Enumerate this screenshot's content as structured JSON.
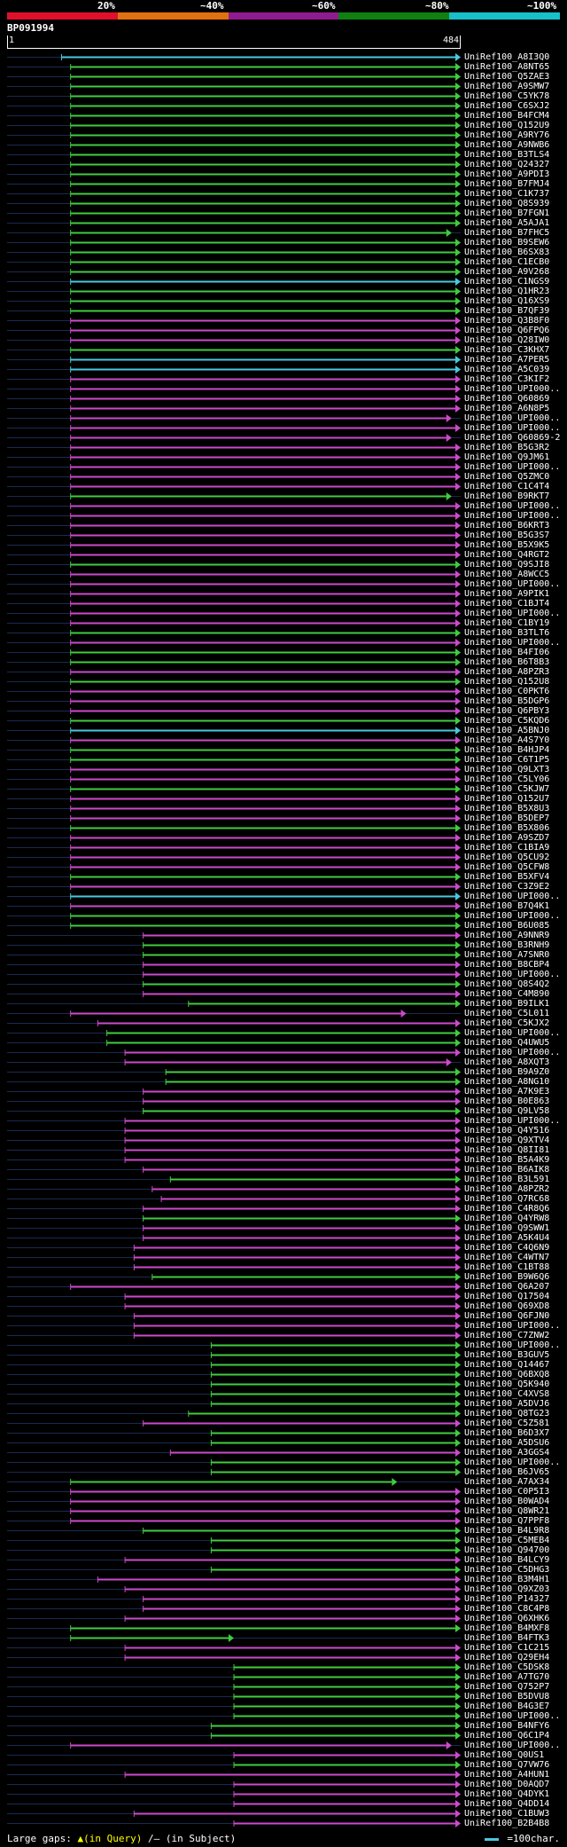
{
  "legend": {
    "labels": [
      "20%",
      "~40%",
      "~60%",
      "~80%",
      "~100%"
    ],
    "colors": [
      "#e0102a",
      "#e07010",
      "#901a90",
      "#108010",
      "#18c0c8"
    ]
  },
  "query": {
    "id": "BP091994",
    "start": "1",
    "end": "484"
  },
  "footer": {
    "gaps_prefix": "Large gaps:",
    "gaps_query": "▲(in Query)",
    "gaps_subject": "/– (in Subject)",
    "scale": "=100char."
  },
  "colors": {
    "green": "#40cc40",
    "magenta": "#cc4acc",
    "cyan": "#4ac8e0",
    "query_marker": "#ffff40"
  },
  "hits": [
    {
      "acc": "UniRef100_A8I3Q0",
      "c": "cyan",
      "s": 0.12,
      "e": 1.0
    },
    {
      "acc": "UniRef100_A8NT65",
      "c": "green",
      "s": 0.14,
      "e": 1.0
    },
    {
      "acc": "UniRef100_Q5ZAE3",
      "c": "green",
      "s": 0.14,
      "e": 1.0
    },
    {
      "acc": "UniRef100_A9SMW7",
      "c": "green",
      "s": 0.14,
      "e": 1.0
    },
    {
      "acc": "UniRef100_C5YK78",
      "c": "green",
      "s": 0.14,
      "e": 1.0
    },
    {
      "acc": "UniRef100_C6SXJ2",
      "c": "green",
      "s": 0.14,
      "e": 1.0
    },
    {
      "acc": "UniRef100_B4FCM4",
      "c": "green",
      "s": 0.14,
      "e": 1.0
    },
    {
      "acc": "UniRef100_Q152U9",
      "c": "green",
      "s": 0.14,
      "e": 1.0
    },
    {
      "acc": "UniRef100_A9RY76",
      "c": "green",
      "s": 0.14,
      "e": 1.0
    },
    {
      "acc": "UniRef100_A9NWB6",
      "c": "green",
      "s": 0.14,
      "e": 1.0
    },
    {
      "acc": "UniRef100_B3TLS4",
      "c": "green",
      "s": 0.14,
      "e": 1.0
    },
    {
      "acc": "UniRef100_Q24327",
      "c": "green",
      "s": 0.14,
      "e": 1.0
    },
    {
      "acc": "UniRef100_A9PDI3",
      "c": "green",
      "s": 0.14,
      "e": 1.0
    },
    {
      "acc": "UniRef100_B7FMJ4",
      "c": "green",
      "s": 0.14,
      "e": 1.0
    },
    {
      "acc": "UniRef100_C1K737",
      "c": "green",
      "s": 0.14,
      "e": 1.0
    },
    {
      "acc": "UniRef100_Q8S939",
      "c": "green",
      "s": 0.14,
      "e": 1.0
    },
    {
      "acc": "UniRef100_B7FGN1",
      "c": "green",
      "s": 0.14,
      "e": 1.0
    },
    {
      "acc": "UniRef100_A5AJA1",
      "c": "green",
      "s": 0.14,
      "e": 1.0
    },
    {
      "acc": "UniRef100_B7FHC5",
      "c": "green",
      "s": 0.14,
      "e": 0.98
    },
    {
      "acc": "UniRef100_B9SEW6",
      "c": "green",
      "s": 0.14,
      "e": 1.0
    },
    {
      "acc": "UniRef100_B6SX83",
      "c": "green",
      "s": 0.14,
      "e": 1.0
    },
    {
      "acc": "UniRef100_C1ECB0",
      "c": "green",
      "s": 0.14,
      "e": 1.0
    },
    {
      "acc": "UniRef100_A9V268",
      "c": "green",
      "s": 0.14,
      "e": 1.0
    },
    {
      "acc": "UniRef100_C1NGS9",
      "c": "cyan",
      "s": 0.14,
      "e": 1.0
    },
    {
      "acc": "UniRef100_Q1HR23",
      "c": "green",
      "s": 0.14,
      "e": 1.0
    },
    {
      "acc": "UniRef100_Q16XS9",
      "c": "green",
      "s": 0.14,
      "e": 1.0
    },
    {
      "acc": "UniRef100_B7QF39",
      "c": "green",
      "s": 0.14,
      "e": 1.0
    },
    {
      "acc": "UniRef100_Q3B8F0",
      "c": "magenta",
      "s": 0.14,
      "e": 1.0
    },
    {
      "acc": "UniRef100_Q6FPQ6",
      "c": "magenta",
      "s": 0.14,
      "e": 1.0
    },
    {
      "acc": "UniRef100_Q28IW0",
      "c": "magenta",
      "s": 0.14,
      "e": 1.0
    },
    {
      "acc": "UniRef100_C3KHX7",
      "c": "green",
      "s": 0.14,
      "e": 1.0
    },
    {
      "acc": "UniRef100_A7PER5",
      "c": "cyan",
      "s": 0.14,
      "e": 1.0
    },
    {
      "acc": "UniRef100_A5C039",
      "c": "cyan",
      "s": 0.14,
      "e": 1.0
    },
    {
      "acc": "UniRef100_C3KIF2",
      "c": "magenta",
      "s": 0.14,
      "e": 1.0
    },
    {
      "acc": "UniRef100_UPI000..",
      "c": "magenta",
      "s": 0.14,
      "e": 1.0
    },
    {
      "acc": "UniRef100_Q60869",
      "c": "magenta",
      "s": 0.14,
      "e": 1.0
    },
    {
      "acc": "UniRef100_A6N8P5",
      "c": "magenta",
      "s": 0.14,
      "e": 1.0
    },
    {
      "acc": "UniRef100_UPI000..",
      "c": "magenta",
      "s": 0.14,
      "e": 0.98
    },
    {
      "acc": "UniRef100_UPI000..",
      "c": "magenta",
      "s": 0.14,
      "e": 1.0
    },
    {
      "acc": "UniRef100_Q60869-2",
      "c": "magenta",
      "s": 0.14,
      "e": 0.98
    },
    {
      "acc": "UniRef100_B5G3R2",
      "c": "magenta",
      "s": 0.14,
      "e": 1.0
    },
    {
      "acc": "UniRef100_Q9JM61",
      "c": "magenta",
      "s": 0.14,
      "e": 1.0
    },
    {
      "acc": "UniRef100_UPI000..",
      "c": "magenta",
      "s": 0.14,
      "e": 1.0
    },
    {
      "acc": "UniRef100_Q5ZMC0",
      "c": "magenta",
      "s": 0.14,
      "e": 1.0
    },
    {
      "acc": "UniRef100_C1C4T4",
      "c": "magenta",
      "s": 0.14,
      "e": 1.0
    },
    {
      "acc": "UniRef100_B9RKT7",
      "c": "green",
      "s": 0.14,
      "e": 0.98
    },
    {
      "acc": "UniRef100_UPI000..",
      "c": "magenta",
      "s": 0.14,
      "e": 1.0
    },
    {
      "acc": "UniRef100_UPI000..",
      "c": "magenta",
      "s": 0.14,
      "e": 1.0
    },
    {
      "acc": "UniRef100_B6KRT3",
      "c": "magenta",
      "s": 0.14,
      "e": 1.0
    },
    {
      "acc": "UniRef100_B5G3S7",
      "c": "magenta",
      "s": 0.14,
      "e": 1.0
    },
    {
      "acc": "UniRef100_B5X9K5",
      "c": "magenta",
      "s": 0.14,
      "e": 1.0
    },
    {
      "acc": "UniRef100_Q4RGT2",
      "c": "magenta",
      "s": 0.14,
      "e": 1.0
    },
    {
      "acc": "UniRef100_Q9SJI8",
      "c": "green",
      "s": 0.14,
      "e": 1.0
    },
    {
      "acc": "UniRef100_A8WCC5",
      "c": "magenta",
      "s": 0.14,
      "e": 1.0
    },
    {
      "acc": "UniRef100_UPI000..",
      "c": "magenta",
      "s": 0.14,
      "e": 1.0
    },
    {
      "acc": "UniRef100_A9PIK1",
      "c": "magenta",
      "s": 0.14,
      "e": 1.0
    },
    {
      "acc": "UniRef100_C1BJT4",
      "c": "magenta",
      "s": 0.14,
      "e": 1.0
    },
    {
      "acc": "UniRef100_UPI000..",
      "c": "magenta",
      "s": 0.14,
      "e": 1.0
    },
    {
      "acc": "UniRef100_C1BY19",
      "c": "magenta",
      "s": 0.14,
      "e": 1.0
    },
    {
      "acc": "UniRef100_B3TLT6",
      "c": "green",
      "s": 0.14,
      "e": 1.0
    },
    {
      "acc": "UniRef100_UPI000..",
      "c": "magenta",
      "s": 0.14,
      "e": 1.0
    },
    {
      "acc": "UniRef100_B4FI06",
      "c": "green",
      "s": 0.14,
      "e": 1.0
    },
    {
      "acc": "UniRef100_B6T8B3",
      "c": "green",
      "s": 0.14,
      "e": 1.0
    },
    {
      "acc": "UniRef100_A8PZR3",
      "c": "magenta",
      "s": 0.14,
      "e": 1.0
    },
    {
      "acc": "UniRef100_Q152U8",
      "c": "green",
      "s": 0.14,
      "e": 1.0
    },
    {
      "acc": "UniRef100_C0PKT6",
      "c": "magenta",
      "s": 0.14,
      "e": 1.0
    },
    {
      "acc": "UniRef100_B5DGP6",
      "c": "magenta",
      "s": 0.14,
      "e": 1.0
    },
    {
      "acc": "UniRef100_Q6PBY3",
      "c": "magenta",
      "s": 0.14,
      "e": 1.0
    },
    {
      "acc": "UniRef100_C5KQD6",
      "c": "green",
      "s": 0.14,
      "e": 1.0
    },
    {
      "acc": "UniRef100_A5BNJ0",
      "c": "cyan",
      "s": 0.14,
      "e": 1.0
    },
    {
      "acc": "UniRef100_A4S7Y0",
      "c": "magenta",
      "s": 0.14,
      "e": 1.0
    },
    {
      "acc": "UniRef100_B4HJP4",
      "c": "green",
      "s": 0.14,
      "e": 1.0
    },
    {
      "acc": "UniRef100_C6T1P5",
      "c": "green",
      "s": 0.14,
      "e": 1.0
    },
    {
      "acc": "UniRef100_Q9LXT3",
      "c": "magenta",
      "s": 0.14,
      "e": 1.0
    },
    {
      "acc": "UniRef100_C5LY06",
      "c": "magenta",
      "s": 0.14,
      "e": 1.0
    },
    {
      "acc": "UniRef100_C5KJW7",
      "c": "green",
      "s": 0.14,
      "e": 1.0
    },
    {
      "acc": "UniRef100_Q152U7",
      "c": "magenta",
      "s": 0.14,
      "e": 1.0
    },
    {
      "acc": "UniRef100_B5X8U3",
      "c": "magenta",
      "s": 0.14,
      "e": 1.0
    },
    {
      "acc": "UniRef100_B5DEP7",
      "c": "magenta",
      "s": 0.14,
      "e": 1.0
    },
    {
      "acc": "UniRef100_B5X806",
      "c": "green",
      "s": 0.14,
      "e": 1.0
    },
    {
      "acc": "UniRef100_A9SZD7",
      "c": "magenta",
      "s": 0.14,
      "e": 1.0
    },
    {
      "acc": "UniRef100_C1BIA9",
      "c": "magenta",
      "s": 0.14,
      "e": 1.0
    },
    {
      "acc": "UniRef100_Q5CU92",
      "c": "magenta",
      "s": 0.14,
      "e": 1.0
    },
    {
      "acc": "UniRef100_Q5CFW8",
      "c": "magenta",
      "s": 0.14,
      "e": 1.0
    },
    {
      "acc": "UniRef100_B5XFV4",
      "c": "green",
      "s": 0.14,
      "e": 1.0
    },
    {
      "acc": "UniRef100_C3Z9E2",
      "c": "magenta",
      "s": 0.14,
      "e": 1.0
    },
    {
      "acc": "UniRef100_UPI000..",
      "c": "cyan",
      "s": 0.14,
      "e": 1.0
    },
    {
      "acc": "UniRef100_B7Q4K1",
      "c": "magenta",
      "s": 0.14,
      "e": 1.0
    },
    {
      "acc": "UniRef100_UPI000..",
      "c": "green",
      "s": 0.14,
      "e": 1.0
    },
    {
      "acc": "UniRef100_B6U085",
      "c": "green",
      "s": 0.14,
      "e": 1.0
    },
    {
      "acc": "UniRef100_A9NNR9",
      "c": "magenta",
      "s": 0.3,
      "e": 1.0
    },
    {
      "acc": "UniRef100_B3RNH9",
      "c": "green",
      "s": 0.3,
      "e": 1.0
    },
    {
      "acc": "UniRef100_A7SNR0",
      "c": "green",
      "s": 0.3,
      "e": 1.0
    },
    {
      "acc": "UniRef100_B8CBP4",
      "c": "magenta",
      "s": 0.3,
      "e": 1.0
    },
    {
      "acc": "UniRef100_UPI000..",
      "c": "magenta",
      "s": 0.3,
      "e": 1.0
    },
    {
      "acc": "UniRef100_Q8S4Q2",
      "c": "green",
      "s": 0.3,
      "e": 1.0
    },
    {
      "acc": "UniRef100_C4M890",
      "c": "magenta",
      "s": 0.3,
      "e": 1.0
    },
    {
      "acc": "UniRef100_B9ILK1",
      "c": "green",
      "s": 0.4,
      "e": 1.0
    },
    {
      "acc": "UniRef100_C5L011",
      "c": "magenta",
      "s": 0.14,
      "e": 0.88
    },
    {
      "acc": "UniRef100_C5KJX2",
      "c": "magenta",
      "s": 0.2,
      "e": 1.0
    },
    {
      "acc": "UniRef100_UPI000..",
      "c": "green",
      "s": 0.22,
      "e": 1.0
    },
    {
      "acc": "UniRef100_Q4UWU5",
      "c": "green",
      "s": 0.22,
      "e": 1.0
    },
    {
      "acc": "UniRef100_UPI000..",
      "c": "magenta",
      "s": 0.26,
      "e": 1.0
    },
    {
      "acc": "UniRef100_A8XQT3",
      "c": "magenta",
      "s": 0.26,
      "e": 0.98
    },
    {
      "acc": "UniRef100_B9A9Z0",
      "c": "green",
      "s": 0.35,
      "e": 1.0
    },
    {
      "acc": "UniRef100_A8NG10",
      "c": "green",
      "s": 0.35,
      "e": 1.0
    },
    {
      "acc": "UniRef100_A7K9E3",
      "c": "magenta",
      "s": 0.3,
      "e": 1.0
    },
    {
      "acc": "UniRef100_B0E863",
      "c": "magenta",
      "s": 0.3,
      "e": 1.0
    },
    {
      "acc": "UniRef100_Q9LV58",
      "c": "green",
      "s": 0.3,
      "e": 1.0
    },
    {
      "acc": "UniRef100_UPI000..",
      "c": "magenta",
      "s": 0.26,
      "e": 1.0
    },
    {
      "acc": "UniRef100_Q4Y516",
      "c": "magenta",
      "s": 0.26,
      "e": 1.0
    },
    {
      "acc": "UniRef100_Q9XTV4",
      "c": "magenta",
      "s": 0.26,
      "e": 1.0
    },
    {
      "acc": "UniRef100_Q8II81",
      "c": "magenta",
      "s": 0.26,
      "e": 1.0
    },
    {
      "acc": "UniRef100_B5A4K9",
      "c": "magenta",
      "s": 0.26,
      "e": 1.0
    },
    {
      "acc": "UniRef100_B6AIK8",
      "c": "magenta",
      "s": 0.3,
      "e": 1.0
    },
    {
      "acc": "UniRef100_B3L591",
      "c": "green",
      "s": 0.36,
      "e": 1.0
    },
    {
      "acc": "UniRef100_A8PZR2",
      "c": "magenta",
      "s": 0.32,
      "e": 1.0
    },
    {
      "acc": "UniRef100_Q7RC68",
      "c": "magenta",
      "s": 0.34,
      "e": 1.0
    },
    {
      "acc": "UniRef100_C4R8Q6",
      "c": "magenta",
      "s": 0.3,
      "e": 1.0
    },
    {
      "acc": "UniRef100_Q4YRW8",
      "c": "green",
      "s": 0.3,
      "e": 1.0
    },
    {
      "acc": "UniRef100_Q9SWW1",
      "c": "magenta",
      "s": 0.3,
      "e": 1.0
    },
    {
      "acc": "UniRef100_A5K4U4",
      "c": "magenta",
      "s": 0.3,
      "e": 1.0
    },
    {
      "acc": "UniRef100_C4Q6N9",
      "c": "magenta",
      "s": 0.28,
      "e": 1.0
    },
    {
      "acc": "UniRef100_C4WTN7",
      "c": "magenta",
      "s": 0.28,
      "e": 1.0
    },
    {
      "acc": "UniRef100_C1BT88",
      "c": "magenta",
      "s": 0.28,
      "e": 1.0
    },
    {
      "acc": "UniRef100_B9W6Q6",
      "c": "green",
      "s": 0.32,
      "e": 1.0
    },
    {
      "acc": "UniRef100_Q6A207",
      "c": "magenta",
      "s": 0.14,
      "e": 1.0
    },
    {
      "acc": "UniRef100_Q17504",
      "c": "magenta",
      "s": 0.26,
      "e": 1.0
    },
    {
      "acc": "UniRef100_Q69XD8",
      "c": "magenta",
      "s": 0.26,
      "e": 1.0
    },
    {
      "acc": "UniRef100_Q6FJN0",
      "c": "magenta",
      "s": 0.28,
      "e": 1.0
    },
    {
      "acc": "UniRef100_UPI000..",
      "c": "magenta",
      "s": 0.28,
      "e": 1.0
    },
    {
      "acc": "UniRef100_C7ZNW2",
      "c": "magenta",
      "s": 0.28,
      "e": 1.0
    },
    {
      "acc": "UniRef100_UPI000..",
      "c": "green",
      "s": 0.45,
      "e": 1.0
    },
    {
      "acc": "UniRef100_B3GUV5",
      "c": "green",
      "s": 0.45,
      "e": 1.0
    },
    {
      "acc": "UniRef100_Q14467",
      "c": "green",
      "s": 0.45,
      "e": 1.0
    },
    {
      "acc": "UniRef100_Q6BXQ8",
      "c": "green",
      "s": 0.45,
      "e": 1.0
    },
    {
      "acc": "UniRef100_Q5K940",
      "c": "green",
      "s": 0.45,
      "e": 1.0
    },
    {
      "acc": "UniRef100_C4XVS8",
      "c": "green",
      "s": 0.45,
      "e": 1.0
    },
    {
      "acc": "UniRef100_A5DVJ6",
      "c": "green",
      "s": 0.45,
      "e": 1.0
    },
    {
      "acc": "UniRef100_Q8TG23",
      "c": "green",
      "s": 0.4,
      "e": 1.0
    },
    {
      "acc": "UniRef100_C5Z581",
      "c": "magenta",
      "s": 0.3,
      "e": 1.0
    },
    {
      "acc": "UniRef100_B6D3X7",
      "c": "green",
      "s": 0.45,
      "e": 1.0
    },
    {
      "acc": "UniRef100_A5DSU6",
      "c": "green",
      "s": 0.45,
      "e": 1.0
    },
    {
      "acc": "UniRef100_A3GGS4",
      "c": "magenta",
      "s": 0.36,
      "e": 1.0
    },
    {
      "acc": "UniRef100_UPI000..",
      "c": "green",
      "s": 0.45,
      "e": 1.0
    },
    {
      "acc": "UniRef100_B6JV65",
      "c": "green",
      "s": 0.45,
      "e": 1.0
    },
    {
      "acc": "UniRef100_A7AX34",
      "c": "green",
      "s": 0.14,
      "e": 0.86
    },
    {
      "acc": "UniRef100_C0P5I3",
      "c": "magenta",
      "s": 0.14,
      "e": 1.0
    },
    {
      "acc": "UniRef100_B0WAD4",
      "c": "magenta",
      "s": 0.14,
      "e": 1.0
    },
    {
      "acc": "UniRef100_Q8WR21",
      "c": "magenta",
      "s": 0.14,
      "e": 1.0
    },
    {
      "acc": "UniRef100_Q7PPF8",
      "c": "magenta",
      "s": 0.14,
      "e": 1.0
    },
    {
      "acc": "UniRef100_B4L9R8",
      "c": "green",
      "s": 0.3,
      "e": 1.0
    },
    {
      "acc": "UniRef100_C5MEB4",
      "c": "green",
      "s": 0.45,
      "e": 1.0
    },
    {
      "acc": "UniRef100_Q94700",
      "c": "green",
      "s": 0.45,
      "e": 1.0
    },
    {
      "acc": "UniRef100_B4LCY9",
      "c": "magenta",
      "s": 0.26,
      "e": 1.0
    },
    {
      "acc": "UniRef100_C5DHG3",
      "c": "green",
      "s": 0.45,
      "e": 1.0
    },
    {
      "acc": "UniRef100_B3M4H1",
      "c": "magenta",
      "s": 0.2,
      "e": 1.0
    },
    {
      "acc": "UniRef100_Q9XZ03",
      "c": "magenta",
      "s": 0.26,
      "e": 1.0
    },
    {
      "acc": "UniRef100_P14327",
      "c": "magenta",
      "s": 0.3,
      "e": 1.0
    },
    {
      "acc": "UniRef100_C8C4P8",
      "c": "magenta",
      "s": 0.3,
      "e": 1.0
    },
    {
      "acc": "UniRef100_Q6XHK6",
      "c": "magenta",
      "s": 0.26,
      "e": 1.0
    },
    {
      "acc": "UniRef100_B4MXF8",
      "c": "green",
      "s": 0.14,
      "e": 1.0
    },
    {
      "acc": "UniRef100_B4FTK3",
      "c": "green",
      "s": 0.14,
      "e": 0.5
    },
    {
      "acc": "UniRef100_C1C215",
      "c": "magenta",
      "s": 0.26,
      "e": 1.0
    },
    {
      "acc": "UniRef100_Q29EH4",
      "c": "magenta",
      "s": 0.26,
      "e": 1.0
    },
    {
      "acc": "UniRef100_C5DSK8",
      "c": "green",
      "s": 0.5,
      "e": 1.0
    },
    {
      "acc": "UniRef100_A7TG70",
      "c": "green",
      "s": 0.5,
      "e": 1.0
    },
    {
      "acc": "UniRef100_Q752P7",
      "c": "green",
      "s": 0.5,
      "e": 1.0
    },
    {
      "acc": "UniRef100_B5DVU8",
      "c": "green",
      "s": 0.5,
      "e": 1.0
    },
    {
      "acc": "UniRef100_B4G3E7",
      "c": "green",
      "s": 0.5,
      "e": 1.0
    },
    {
      "acc": "UniRef100_UPI000..",
      "c": "green",
      "s": 0.5,
      "e": 1.0
    },
    {
      "acc": "UniRef100_B4NFY6",
      "c": "green",
      "s": 0.45,
      "e": 1.0
    },
    {
      "acc": "UniRef100_Q6C1P4",
      "c": "green",
      "s": 0.45,
      "e": 1.0
    },
    {
      "acc": "UniRef100_UPI000..",
      "c": "magenta",
      "s": 0.14,
      "e": 0.98
    },
    {
      "acc": "UniRef100_Q0US1",
      "c": "magenta",
      "s": 0.5,
      "e": 1.0
    },
    {
      "acc": "UniRef100_Q7VW76",
      "c": "green",
      "s": 0.5,
      "e": 1.0
    },
    {
      "acc": "UniRef100_A4HUN1",
      "c": "magenta",
      "s": 0.26,
      "e": 1.0
    },
    {
      "acc": "UniRef100_D0AQD7",
      "c": "magenta",
      "s": 0.5,
      "e": 1.0
    },
    {
      "acc": "UniRef100_Q4DYK1",
      "c": "magenta",
      "s": 0.5,
      "e": 1.0
    },
    {
      "acc": "UniRef100_Q4DD14",
      "c": "magenta",
      "s": 0.5,
      "e": 1.0
    },
    {
      "acc": "UniRef100_C1BUW3",
      "c": "magenta",
      "s": 0.28,
      "e": 1.0
    },
    {
      "acc": "UniRef100_B2B4B8",
      "c": "magenta",
      "s": 0.5,
      "e": 1.0
    }
  ]
}
